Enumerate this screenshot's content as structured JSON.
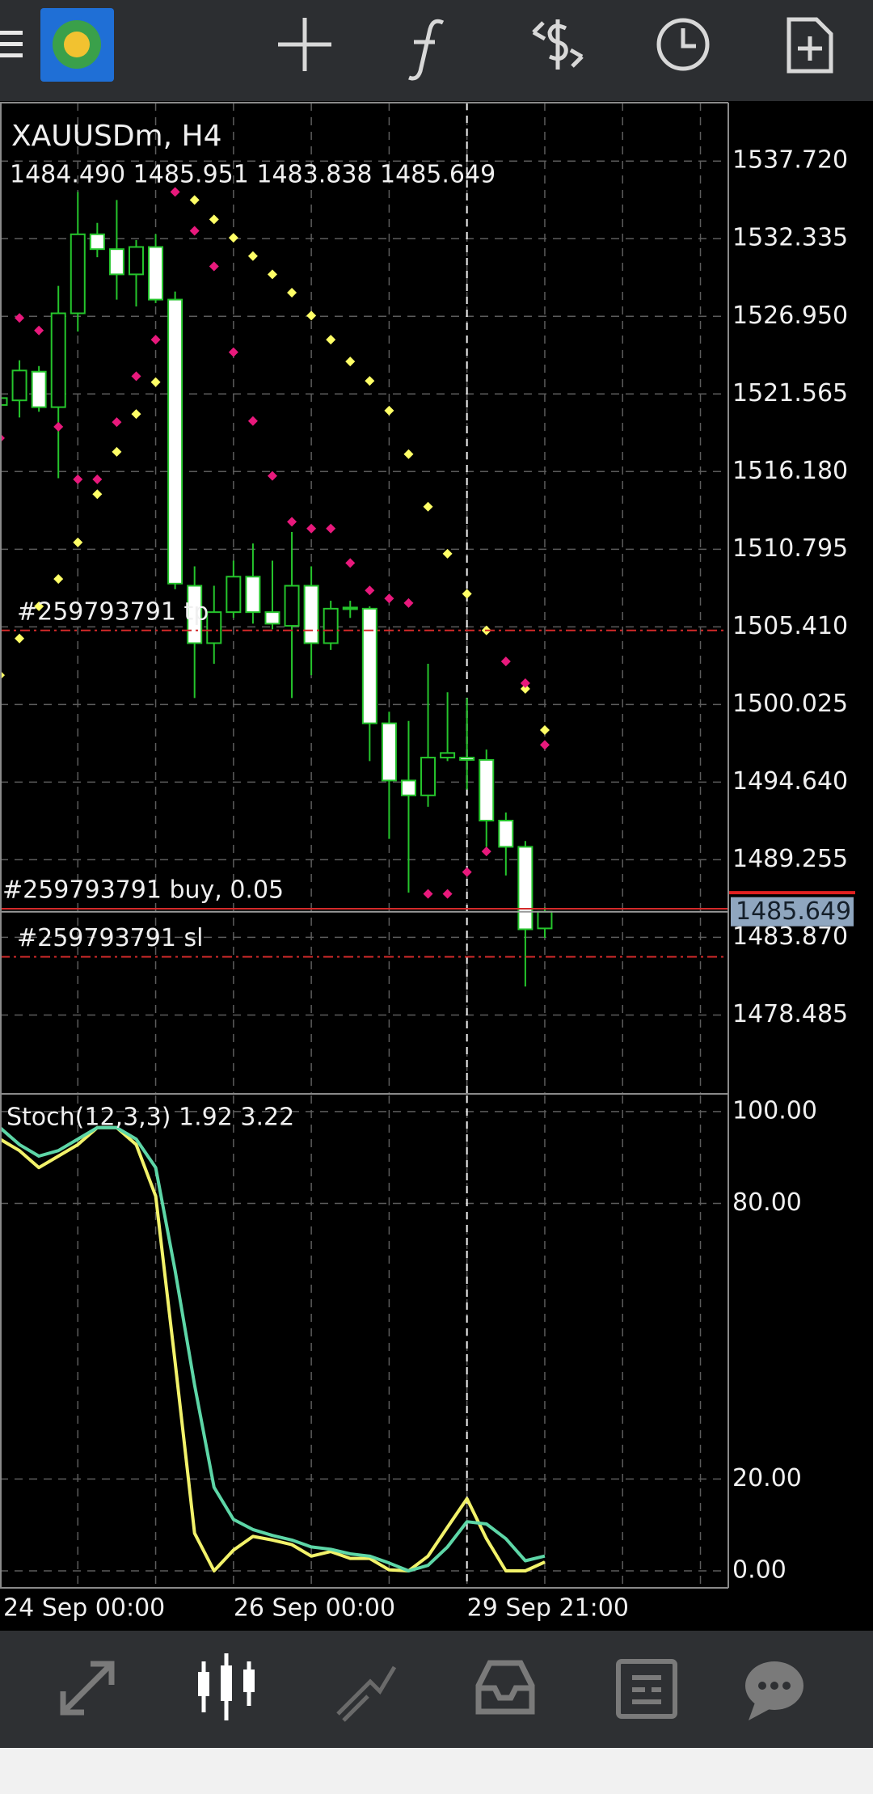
{
  "chart_data": [
    {
      "type": "candlestick",
      "title": "XAUUSDm, H4",
      "subtitle": "1484.490 1485.951 1483.838 1485.649",
      "categories": [
        "24 Sep 00:00",
        null,
        null,
        null,
        null,
        null,
        null,
        null,
        null,
        null,
        null,
        null,
        "26 Sep 00:00",
        null,
        null,
        null,
        null,
        null,
        null,
        null,
        null,
        null,
        null,
        null,
        "29 Sep 21:00",
        null,
        null,
        null,
        null
      ],
      "open": [
        1520.8,
        1521.12,
        1523.11,
        1520.65,
        1527.16,
        1532.64,
        1531.61,
        1529.86,
        1531.76,
        1528.11,
        1508.26,
        1504.28,
        1506.43,
        1508.89,
        1506.43,
        1505.48,
        1508.26,
        1504.28,
        1506.67,
        1506.67,
        1498.72,
        1494.75,
        1493.72,
        1496.34,
        1496.34,
        1496.18,
        1491.97,
        1490.15,
        1484.49
      ],
      "high": [
        1521.92,
        1523.9,
        1523.5,
        1529.06,
        1535.58,
        1533.43,
        1535.02,
        1532.24,
        1532.64,
        1528.67,
        1509.61,
        1508.26,
        1510.0,
        1511.19,
        1510.0,
        1511.99,
        1509.61,
        1507.22,
        1507.22,
        1506.83,
        1499.52,
        1498.88,
        1502.85,
        1500.87,
        1500.47,
        1496.9,
        1492.53,
        1490.55,
        1485.951
      ],
      "low": [
        1520.33,
        1519.93,
        1520.33,
        1515.72,
        1525.89,
        1531.05,
        1528.11,
        1527.63,
        1527.87,
        1508.02,
        1500.47,
        1502.85,
        1506.03,
        1505.63,
        1505.24,
        1500.47,
        1502.06,
        1503.81,
        1506.03,
        1496.1,
        1490.7,
        1486.97,
        1492.93,
        1496.1,
        1494.12,
        1490.15,
        1488.16,
        1480.46,
        1483.838
      ],
      "close": [
        1521.28,
        1523.19,
        1520.65,
        1527.16,
        1532.64,
        1531.61,
        1529.86,
        1531.76,
        1528.11,
        1508.41,
        1504.28,
        1506.43,
        1508.89,
        1506.43,
        1505.63,
        1508.26,
        1504.28,
        1506.67,
        1506.75,
        1498.72,
        1494.75,
        1493.72,
        1496.34,
        1496.66,
        1496.18,
        1491.97,
        1490.15,
        1484.43,
        1485.649
      ],
      "up_color": "#000000",
      "down_color": "#ffffff",
      "wick_color": "#25c52c",
      "overlays": [
        {
          "type": "scatter",
          "color": "#ffff66",
          "values": [
            1502.06,
            1504.6,
            1506.83,
            1508.73,
            1511.27,
            1514.61,
            1517.55,
            1520.17,
            1522.39,
            null,
            1535.02,
            1533.67,
            1532.4,
            1531.13,
            1529.86,
            1528.59,
            1527.0,
            1525.33,
            1523.82,
            1522.47,
            1520.41,
            1517.39,
            1513.74,
            1510.48,
            1507.7,
            1505.16,
            null,
            1501.11,
            1498.25
          ]
        },
        {
          "type": "scatter",
          "color": "#e8197c",
          "values": [
            1518.5,
            1526.84,
            1525.97,
            1519.29,
            1515.64,
            1515.64,
            1519.61,
            1522.79,
            1525.33,
            1535.58,
            1532.88,
            1530.41,
            1524.46,
            1519.69,
            1515.88,
            1512.7,
            1512.23,
            1512.23,
            1509.84,
            1507.94,
            1507.38,
            1507.06,
            1486.89,
            1486.89,
            1488.4,
            1489.83,
            1503.01,
            1501.5,
            1497.22
          ]
        }
      ],
      "orders": [
        {
          "label": "#259793791 tp",
          "price": 1505.16,
          "color": "#d42a2a",
          "style": "dashdot"
        },
        {
          "label": "#259793791 buy, 0.05",
          "price": 1485.86,
          "color": "#d42a2a",
          "style": "solid"
        },
        {
          "label": "#259793791 sl",
          "price": 1482.52,
          "color": "#d42a2a",
          "style": "dashdot"
        }
      ],
      "ask": 1486.97,
      "ask_color": "#e02020",
      "bid_box_color": "#8fa6bf",
      "ylim": [
        1473.07,
        1541.77
      ],
      "yticks": [
        {
          "value": 1537.72,
          "label": "1537.720"
        },
        1532.335,
        {
          "value": 1526.95,
          "label": "1526.950"
        },
        1521.565,
        {
          "value": 1516.18,
          "label": "1516.180"
        },
        1510.795,
        {
          "value": 1505.41,
          "label": "1505.410"
        },
        1500.025,
        {
          "value": 1494.64,
          "label": "1494.640"
        },
        1489.255,
        {
          "value": 1483.87,
          "label": "1483.870"
        },
        1478.485
      ],
      "grid": true
    },
    {
      "type": "line",
      "title": "Stoch(12,3,3) 1.92 3.22",
      "series": [
        {
          "color": "#f2f26a",
          "values": [
            94,
            91.5,
            87.8,
            90.3,
            92.8,
            96.5,
            96.5,
            92.8,
            81.6,
            45.5,
            8.2,
            0,
            4.5,
            7.5,
            6.7,
            5.7,
            3.2,
            4.2,
            2.7,
            2.7,
            0.2,
            0,
            3.2,
            9.5,
            15.7,
            7.0,
            0,
            0,
            1.92
          ]
        },
        {
          "color": "#5dd6a7",
          "values": [
            96.5,
            92.8,
            90.3,
            91.5,
            94,
            96.5,
            96.5,
            94,
            87.8,
            65.4,
            40.5,
            18.2,
            11.2,
            9.0,
            7.7,
            6.7,
            5.2,
            4.7,
            3.7,
            3.2,
            1.7,
            0,
            1.2,
            5.2,
            10.7,
            10.2,
            7.0,
            2.2,
            3.22
          ]
        }
      ],
      "ylim": [
        -3.7,
        103.5
      ],
      "yticks": [
        {
          "value": 100,
          "label": "100.00"
        },
        {
          "value": 80,
          "label": "80.00"
        },
        {
          "value": 20,
          "label": "20.00"
        },
        {
          "value": 0,
          "label": "0.00"
        }
      ],
      "grid": true
    }
  ]
}
